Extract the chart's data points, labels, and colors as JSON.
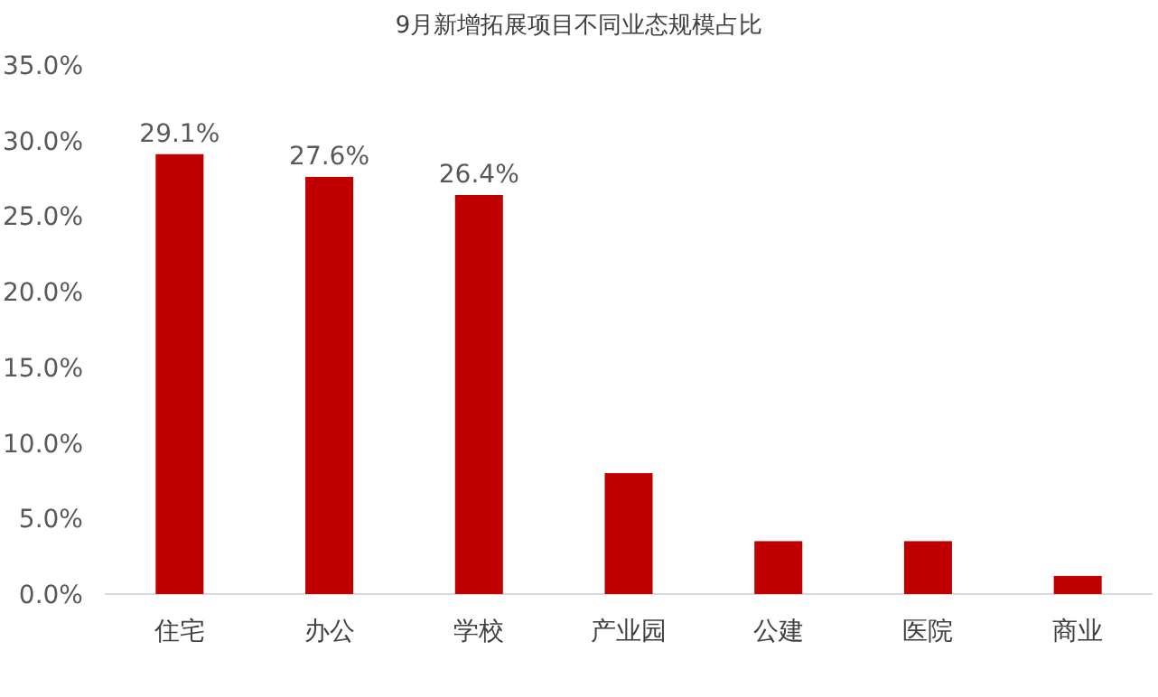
{
  "chart_data": {
    "type": "bar",
    "title": "9月新增拓展项目不同业态规模占比",
    "categories": [
      "住宅",
      "办公",
      "学校",
      "产业园",
      "公建",
      "医院",
      "商业"
    ],
    "values": [
      29.1,
      27.6,
      26.4,
      8.0,
      3.5,
      3.5,
      1.2
    ],
    "value_labels": [
      "29.1%",
      "27.6%",
      "26.4%",
      null,
      null,
      null,
      null
    ],
    "color": "#c00000",
    "ylim": [
      0,
      35
    ],
    "yticks": [
      {
        "value": 0,
        "label": "0.0%"
      },
      {
        "value": 5,
        "label": "5.0%"
      },
      {
        "value": 10,
        "label": "10.0%"
      },
      {
        "value": 15,
        "label": "15.0%"
      },
      {
        "value": 20,
        "label": "20.0%"
      },
      {
        "value": 25,
        "label": "25.0%"
      },
      {
        "value": 30,
        "label": "30.0%"
      },
      {
        "value": 35,
        "label": "35.0%"
      }
    ]
  }
}
